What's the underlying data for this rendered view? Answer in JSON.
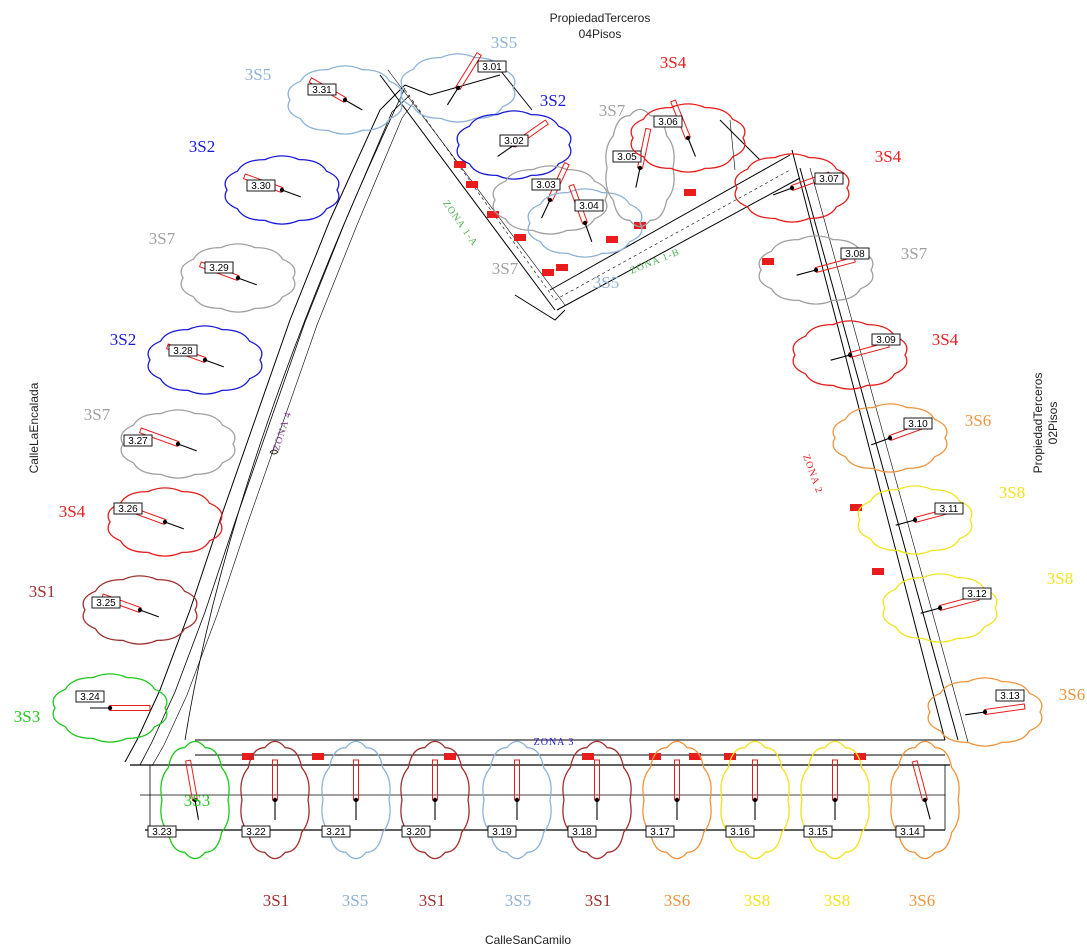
{
  "streets": {
    "top_line1": "PropiedadTerceros",
    "top_line2": "04Pisos",
    "right_line1": "PropiedadTerceros",
    "right_line2": "02Pisos",
    "left": "CalleLaEncalada",
    "bottom": "CalleSanCamilo"
  },
  "zones": {
    "z1a": "ZONA 1-A",
    "z1b": "ZONA 1-B",
    "z2": "ZONA 2",
    "z3": "ZONA 3",
    "z4": "ZONA 4"
  },
  "colors": {
    "3S1": "#a0302f",
    "3S2": "#1a1adc",
    "3S3": "#1ec81e",
    "3S4": "#e81c1c",
    "3S5": "#8eb2d6",
    "3S6": "#f0943c",
    "3S7": "#a0a0a0",
    "3S8": "#f2e41a",
    "zone1": "#4caf50",
    "zone2": "#e81c1c",
    "zone3": "#1a1adc",
    "zone4": "#7b3a8a"
  },
  "trees": [
    {
      "id": "3.01",
      "species": "3S5"
    },
    {
      "id": "3.02",
      "species": "3S2"
    },
    {
      "id": "3.03",
      "species": "3S7"
    },
    {
      "id": "3.04",
      "species": "3S5"
    },
    {
      "id": "3.05",
      "species": "3S7"
    },
    {
      "id": "3.06",
      "species": "3S4"
    },
    {
      "id": "3.07",
      "species": "3S4"
    },
    {
      "id": "3.08",
      "species": "3S7"
    },
    {
      "id": "3.09",
      "species": "3S4"
    },
    {
      "id": "3.10",
      "species": "3S6"
    },
    {
      "id": "3.11",
      "species": "3S8"
    },
    {
      "id": "3.12",
      "species": "3S8"
    },
    {
      "id": "3.13",
      "species": "3S6"
    },
    {
      "id": "3.14",
      "species": "3S6"
    },
    {
      "id": "3.15",
      "species": "3S8"
    },
    {
      "id": "3.16",
      "species": "3S8"
    },
    {
      "id": "3.17",
      "species": "3S6"
    },
    {
      "id": "3.18",
      "species": "3S1"
    },
    {
      "id": "3.19",
      "species": "3S5"
    },
    {
      "id": "3.20",
      "species": "3S1"
    },
    {
      "id": "3.21",
      "species": "3S5"
    },
    {
      "id": "3.22",
      "species": "3S1"
    },
    {
      "id": "3.23",
      "species": "3S3"
    },
    {
      "id": "3.24",
      "species": "3S3"
    },
    {
      "id": "3.25",
      "species": "3S1"
    },
    {
      "id": "3.26",
      "species": "3S4"
    },
    {
      "id": "3.27",
      "species": "3S7"
    },
    {
      "id": "3.28",
      "species": "3S2"
    },
    {
      "id": "3.29",
      "species": "3S7"
    },
    {
      "id": "3.30",
      "species": "3S2"
    },
    {
      "id": "3.31",
      "species": "3S5"
    }
  ],
  "species_labels": [
    {
      "text": "3S5",
      "species": "3S5"
    },
    {
      "text": "3S5",
      "species": "3S5"
    },
    {
      "text": "3S4",
      "species": "3S4"
    },
    {
      "text": "3S2",
      "species": "3S2"
    },
    {
      "text": "3S7",
      "species": "3S7"
    },
    {
      "text": "3S2",
      "species": "3S2"
    },
    {
      "text": "3S4",
      "species": "3S4"
    },
    {
      "text": "3S7",
      "species": "3S7"
    },
    {
      "text": "3S7",
      "species": "3S7"
    },
    {
      "text": "3S5",
      "species": "3S5"
    },
    {
      "text": "3S7",
      "species": "3S7"
    },
    {
      "text": "3S2",
      "species": "3S2"
    },
    {
      "text": "3S4",
      "species": "3S4"
    },
    {
      "text": "3S7",
      "species": "3S7"
    },
    {
      "text": "3S6",
      "species": "3S6"
    },
    {
      "text": "3S4",
      "species": "3S4"
    },
    {
      "text": "3S8",
      "species": "3S8"
    },
    {
      "text": "3S1",
      "species": "3S1"
    },
    {
      "text": "3S8",
      "species": "3S8"
    },
    {
      "text": "3S3",
      "species": "3S3"
    },
    {
      "text": "3S6",
      "species": "3S6"
    },
    {
      "text": "3S3",
      "species": "3S3"
    },
    {
      "text": "3S1",
      "species": "3S1"
    },
    {
      "text": "3S5",
      "species": "3S5"
    },
    {
      "text": "3S1",
      "species": "3S1"
    },
    {
      "text": "3S5",
      "species": "3S5"
    },
    {
      "text": "3S1",
      "species": "3S1"
    },
    {
      "text": "3S6",
      "species": "3S6"
    },
    {
      "text": "3S8",
      "species": "3S8"
    },
    {
      "text": "3S8",
      "species": "3S8"
    },
    {
      "text": "3S6",
      "species": "3S6"
    }
  ]
}
